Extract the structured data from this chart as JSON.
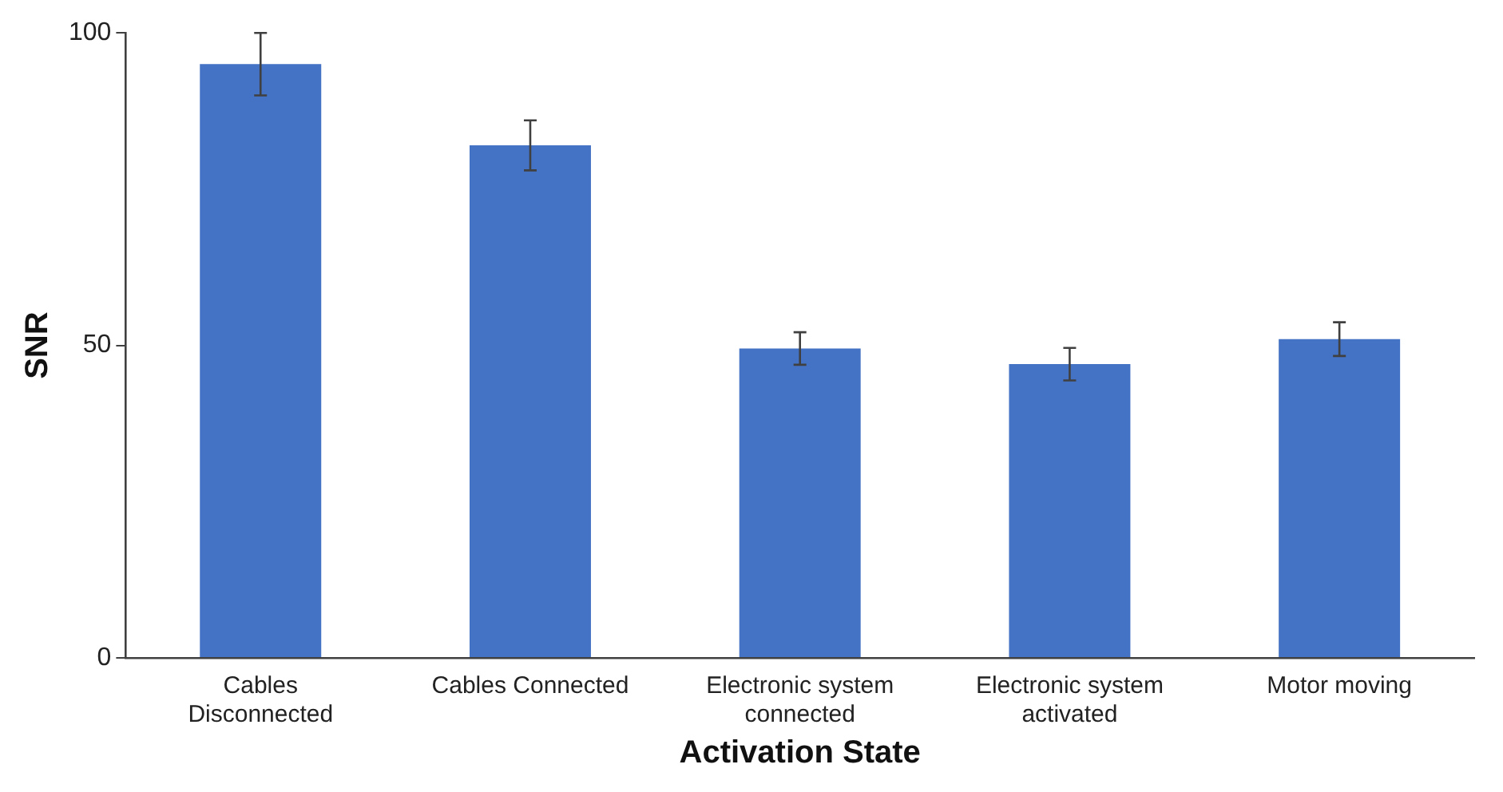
{
  "chart_data": {
    "type": "bar",
    "xlabel": "Activation State",
    "ylabel": "SNR",
    "categories": [
      "Cables Disconnected",
      "Cables Connected",
      "Electronic system connected",
      "Electronic system activated",
      "Motor moving"
    ],
    "values": [
      95,
      82,
      49.5,
      47,
      51
    ],
    "errors": [
      5,
      4,
      2.6,
      2.6,
      2.7
    ],
    "color": "#4472c4",
    "ylim": [
      0,
      100
    ],
    "yticks": [
      0,
      50,
      100
    ],
    "grid": false,
    "legend": false
  }
}
